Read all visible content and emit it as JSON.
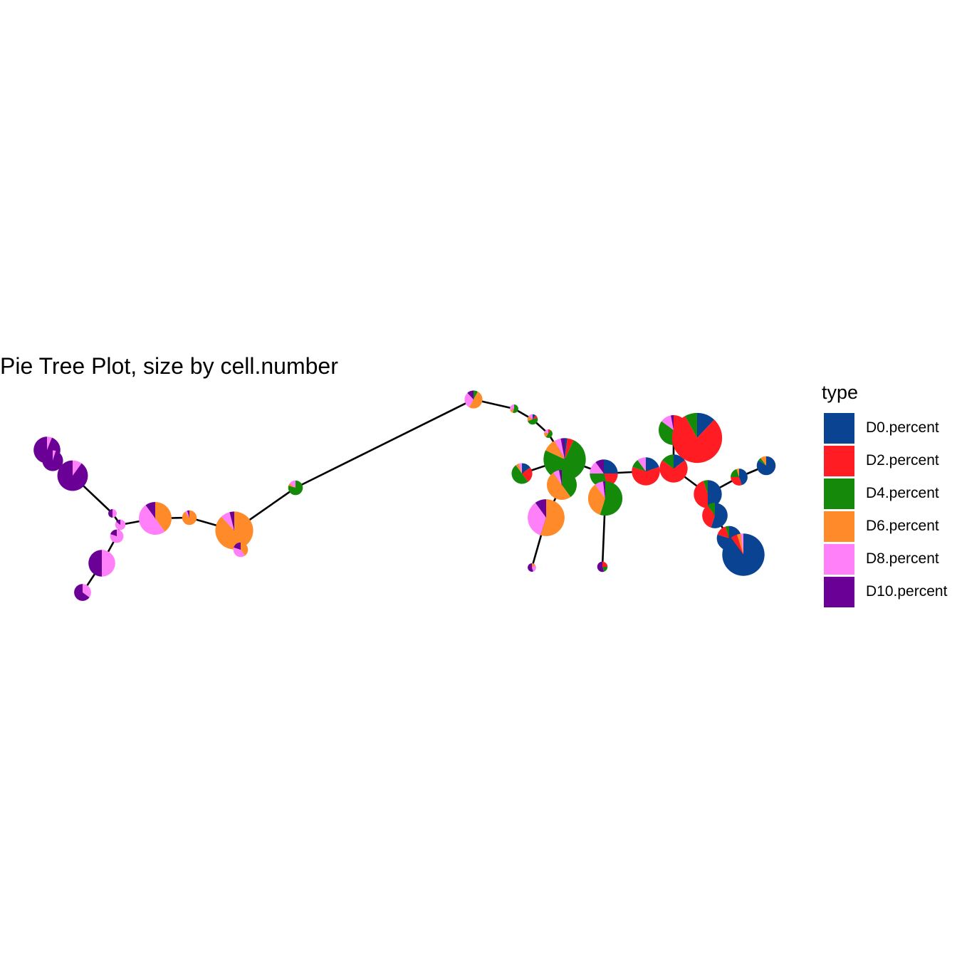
{
  "chart_data": {
    "type": "pie-tree",
    "title": "Pie Tree Plot, size by cell.number",
    "legend": {
      "title": "type",
      "placement": "right",
      "entries": [
        {
          "label": "D0.percent",
          "color": "#0B4393"
        },
        {
          "label": "D2.percent",
          "color": "#FF1D23"
        },
        {
          "label": "D4.percent",
          "color": "#158A0A"
        },
        {
          "label": "D6.percent",
          "color": "#FF8A2A"
        },
        {
          "label": "D8.percent",
          "color": "#FF80F8"
        },
        {
          "label": "D10.percent",
          "color": "#6A0096"
        }
      ]
    },
    "grid": false,
    "axes": false,
    "nodes": [
      {
        "id": 1,
        "cells": 20,
        "pct": [
          0,
          0,
          0,
          0,
          6,
          94
        ]
      },
      {
        "id": 2,
        "cells": 12,
        "pct": [
          0,
          0,
          0,
          0,
          5,
          95
        ]
      },
      {
        "id": 3,
        "cells": 26,
        "pct": [
          0,
          0,
          0,
          0,
          10,
          90
        ]
      },
      {
        "id": 4,
        "cells": 2,
        "pct": [
          0,
          0,
          0,
          0,
          50,
          50
        ]
      },
      {
        "id": 5,
        "cells": 3,
        "pct": [
          0,
          0,
          0,
          0,
          85,
          15
        ]
      },
      {
        "id": 6,
        "cells": 5,
        "pct": [
          0,
          0,
          0,
          0,
          80,
          20
        ]
      },
      {
        "id": 7,
        "cells": 30,
        "pct": [
          0,
          0,
          0,
          40,
          50,
          10
        ]
      },
      {
        "id": 8,
        "cells": 6,
        "pct": [
          0,
          0,
          0,
          90,
          5,
          5
        ]
      },
      {
        "id": 9,
        "cells": 40,
        "pct": [
          0,
          0,
          0,
          88,
          8,
          4
        ]
      },
      {
        "id": 10,
        "cells": 6,
        "pct": [
          0,
          0,
          0,
          40,
          40,
          20
        ]
      },
      {
        "id": 11,
        "cells": 20,
        "pct": [
          0,
          0,
          0,
          0,
          50,
          50
        ]
      },
      {
        "id": 12,
        "cells": 8,
        "pct": [
          0,
          0,
          0,
          0,
          35,
          65
        ]
      },
      {
        "id": 13,
        "cells": 6,
        "pct": [
          0,
          0,
          80,
          5,
          15,
          0
        ]
      },
      {
        "id": 14,
        "cells": 9,
        "pct": [
          0,
          0,
          8,
          50,
          30,
          12
        ]
      },
      {
        "id": 15,
        "cells": 2,
        "pct": [
          0,
          0,
          55,
          15,
          30,
          0
        ]
      },
      {
        "id": 16,
        "cells": 3,
        "pct": [
          10,
          10,
          50,
          15,
          15,
          0
        ]
      },
      {
        "id": 17,
        "cells": 2,
        "pct": [
          0,
          10,
          50,
          20,
          20,
          0
        ]
      },
      {
        "id": 18,
        "cells": 50,
        "pct": [
          2,
          5,
          75,
          10,
          5,
          3
        ]
      },
      {
        "id": 19,
        "cells": 12,
        "pct": [
          15,
          25,
          50,
          5,
          5,
          0
        ]
      },
      {
        "id": 20,
        "cells": 25,
        "pct": [
          0,
          0,
          40,
          50,
          7,
          3
        ]
      },
      {
        "id": 21,
        "cells": 38,
        "pct": [
          0,
          0,
          0,
          55,
          35,
          10
        ]
      },
      {
        "id": 22,
        "cells": 2,
        "pct": [
          0,
          0,
          0,
          15,
          30,
          55
        ]
      },
      {
        "id": 23,
        "cells": 22,
        "pct": [
          25,
          20,
          30,
          0,
          15,
          10
        ]
      },
      {
        "id": 24,
        "cells": 33,
        "pct": [
          0,
          0,
          55,
          35,
          8,
          2
        ]
      },
      {
        "id": 25,
        "cells": 3,
        "pct": [
          0,
          25,
          20,
          0,
          0,
          55
        ]
      },
      {
        "id": 26,
        "cells": 22,
        "pct": [
          20,
          60,
          10,
          0,
          10,
          0
        ]
      },
      {
        "id": 27,
        "cells": 22,
        "pct": [
          15,
          70,
          15,
          0,
          0,
          0
        ]
      },
      {
        "id": 28,
        "cells": 25,
        "pct": [
          0,
          50,
          35,
          0,
          12,
          3
        ]
      },
      {
        "id": 29,
        "cells": 70,
        "pct": [
          12,
          80,
          8,
          0,
          0,
          0
        ]
      },
      {
        "id": 30,
        "cells": 22,
        "pct": [
          50,
          45,
          5,
          0,
          0,
          0
        ]
      },
      {
        "id": 31,
        "cells": 8,
        "pct": [
          45,
          30,
          20,
          5,
          0,
          0
        ]
      },
      {
        "id": 32,
        "cells": 10,
        "pct": [
          85,
          0,
          5,
          10,
          0,
          0
        ]
      },
      {
        "id": 33,
        "cells": 18,
        "pct": [
          55,
          35,
          10,
          0,
          0,
          0
        ]
      },
      {
        "id": 34,
        "cells": 17,
        "pct": [
          80,
          15,
          5,
          0,
          0,
          0
        ]
      },
      {
        "id": 35,
        "cells": 50,
        "pct": [
          90,
          5,
          0,
          3,
          2,
          0
        ]
      }
    ],
    "edges": [
      [
        1,
        2
      ],
      [
        2,
        3
      ],
      [
        3,
        4
      ],
      [
        4,
        5
      ],
      [
        5,
        6
      ],
      [
        6,
        11
      ],
      [
        11,
        12
      ],
      [
        5,
        7
      ],
      [
        7,
        8
      ],
      [
        8,
        9
      ],
      [
        9,
        10
      ],
      [
        9,
        13
      ],
      [
        13,
        14
      ],
      [
        14,
        15
      ],
      [
        15,
        16
      ],
      [
        16,
        17
      ],
      [
        17,
        18
      ],
      [
        18,
        19
      ],
      [
        18,
        20
      ],
      [
        20,
        21
      ],
      [
        21,
        22
      ],
      [
        18,
        23
      ],
      [
        23,
        24
      ],
      [
        24,
        25
      ],
      [
        23,
        26
      ],
      [
        26,
        27
      ],
      [
        27,
        28
      ],
      [
        27,
        29
      ],
      [
        27,
        30
      ],
      [
        30,
        31
      ],
      [
        31,
        32
      ],
      [
        30,
        33
      ],
      [
        33,
        34
      ],
      [
        34,
        35
      ]
    ]
  }
}
